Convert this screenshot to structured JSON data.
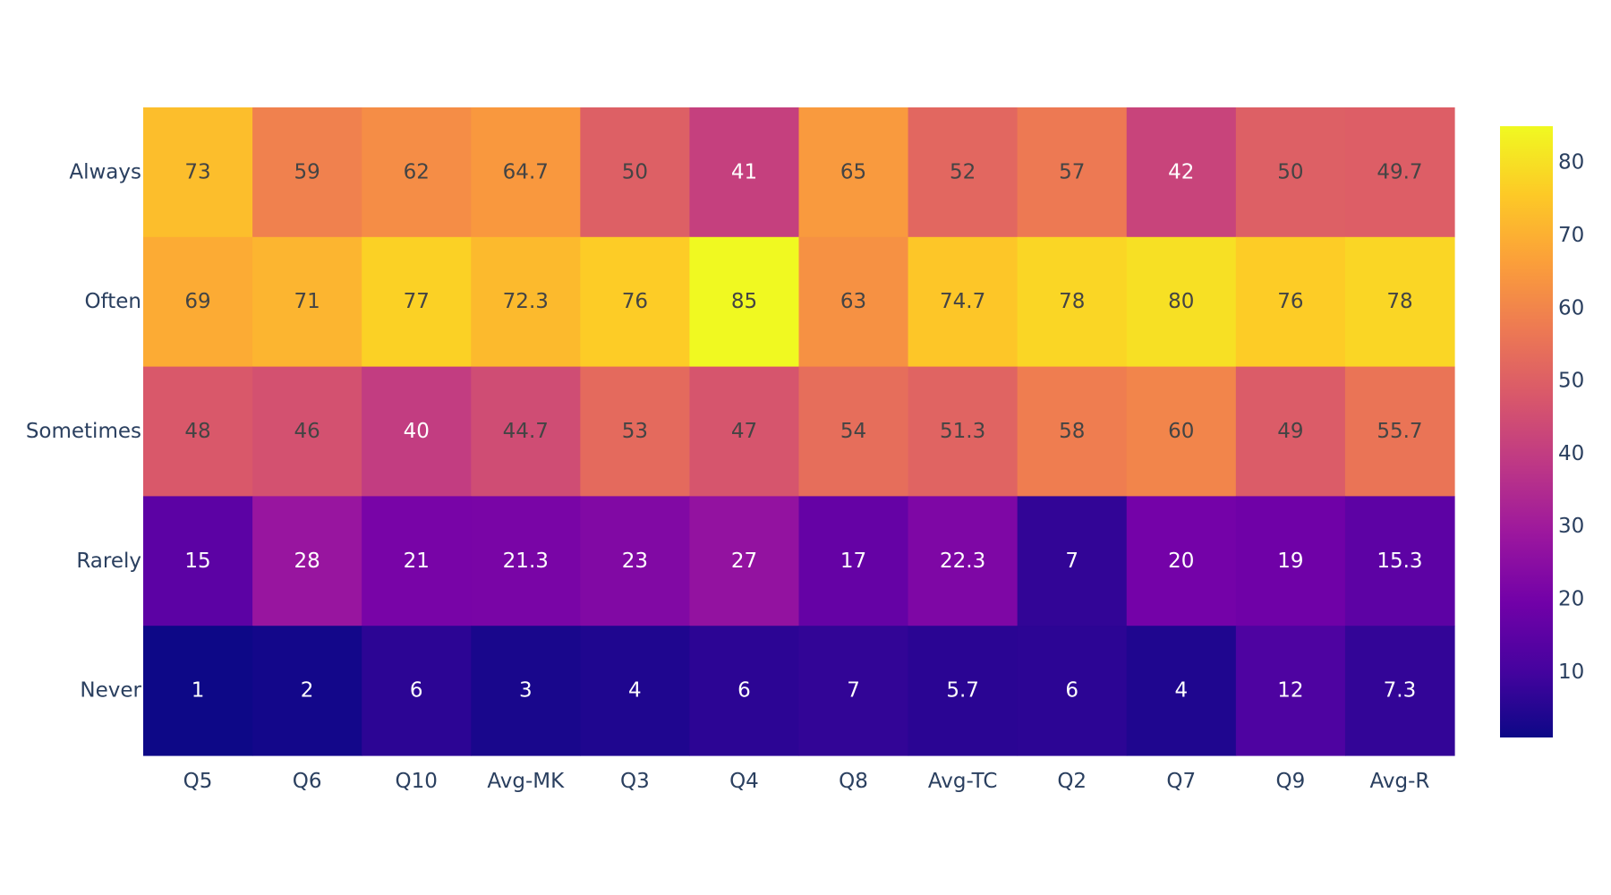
{
  "chart_data": {
    "type": "heatmap",
    "title": "",
    "xlabel": "",
    "ylabel": "",
    "x": [
      "Q5",
      "Q6",
      "Q10",
      "Avg-MK",
      "Q3",
      "Q4",
      "Q8",
      "Avg-TC",
      "Q2",
      "Q7",
      "Q9",
      "Avg-R"
    ],
    "y": [
      "Always",
      "Often",
      "Sometimes",
      "Rarely",
      "Never"
    ],
    "z": [
      [
        73,
        59,
        62,
        64.7,
        50,
        41,
        65,
        52,
        57,
        42,
        50,
        49.7
      ],
      [
        69,
        71,
        77,
        72.3,
        76,
        85,
        63,
        74.7,
        78,
        80,
        76,
        78
      ],
      [
        48,
        46,
        40,
        44.7,
        53,
        47,
        54,
        51.3,
        58,
        60,
        49,
        55.7
      ],
      [
        15,
        28,
        21,
        21.3,
        23,
        27,
        17,
        22.3,
        7,
        20,
        19,
        15.3
      ],
      [
        1,
        2,
        6,
        3,
        4,
        6,
        7,
        5.7,
        6,
        4,
        12,
        7.3
      ]
    ],
    "text": [
      [
        "73",
        "59",
        "62",
        "64.7",
        "50",
        "41",
        "65",
        "52",
        "57",
        "42",
        "50",
        "49.7"
      ],
      [
        "69",
        "71",
        "77",
        "72.3",
        "76",
        "85",
        "63",
        "74.7",
        "78",
        "80",
        "76",
        "78"
      ],
      [
        "48",
        "46",
        "40",
        "44.7",
        "53",
        "47",
        "54",
        "51.3",
        "58",
        "60",
        "49",
        "55.7"
      ],
      [
        "15",
        "28",
        "21",
        "21.3",
        "23",
        "27",
        "17",
        "22.3",
        "7",
        "20",
        "19",
        "15.3"
      ],
      [
        "1",
        "2",
        "6",
        "3",
        "4",
        "6",
        "7",
        "5.7",
        "6",
        "4",
        "12",
        "7.3"
      ]
    ],
    "zmin": 1,
    "zmax": 85,
    "colorscale": "plasma",
    "colorscale_stops": [
      "#0d0887",
      "#46039f",
      "#7201a8",
      "#9c179e",
      "#bd3786",
      "#d8576b",
      "#ed7953",
      "#fb9f3a",
      "#fdca26",
      "#f0f921"
    ],
    "colorbar": {
      "ticks": [
        10,
        20,
        30,
        40,
        50,
        60,
        70,
        80
      ],
      "tick_labels": [
        "10",
        "20",
        "30",
        "40",
        "50",
        "60",
        "70",
        "80"
      ],
      "placement": "right"
    },
    "label_colors": {
      "dark": "#444444",
      "light": "#ffffff"
    },
    "grid": false
  }
}
